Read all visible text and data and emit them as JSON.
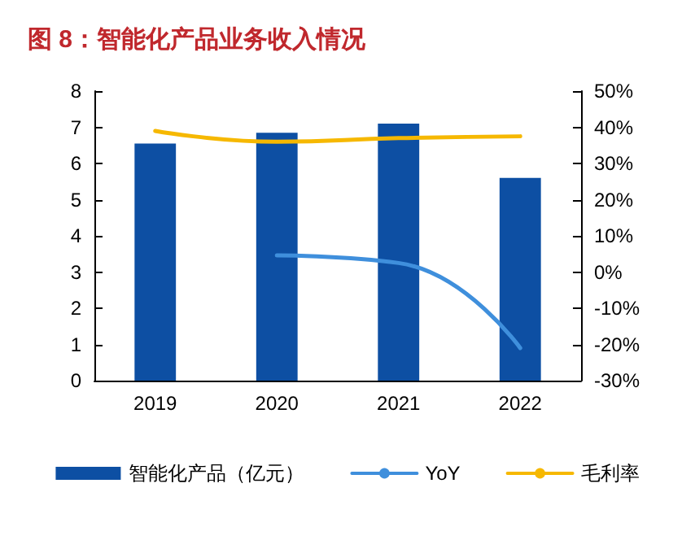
{
  "chart_data": {
    "type": "bar",
    "title": "图 8：智能化产品业务收入情况",
    "categories": [
      "2019",
      "2020",
      "2021",
      "2022"
    ],
    "series": [
      {
        "name": "智能化产品（亿元）",
        "color": "#0d4fa3",
        "values": [
          6.55,
          6.85,
          7.1,
          5.6
        ]
      },
      {
        "name": "YoY",
        "type": "line",
        "axis": "y2",
        "color": "#3f8fdc",
        "values": [
          null,
          4.6,
          2.5,
          -21
        ]
      },
      {
        "name": "毛利率",
        "type": "line",
        "axis": "y2",
        "color": "#f6b800",
        "values": [
          39,
          36,
          37,
          37.5
        ]
      }
    ],
    "ylim": [
      0,
      8
    ],
    "yticks": [
      0,
      1,
      2,
      3,
      4,
      5,
      6,
      7,
      8
    ],
    "y2lim": [
      -30,
      50
    ],
    "y2ticks": [
      {
        "value": -30,
        "label": "-30%"
      },
      {
        "value": -20,
        "label": "-20%"
      },
      {
        "value": -10,
        "label": "-10%"
      },
      {
        "value": 0,
        "label": "0%"
      },
      {
        "value": 10,
        "label": "10%"
      },
      {
        "value": 20,
        "label": "20%"
      },
      {
        "value": 30,
        "label": "30%"
      },
      {
        "value": 40,
        "label": "40%"
      },
      {
        "value": 50,
        "label": "50%"
      }
    ],
    "grid": false,
    "legend": "bottom",
    "marker": "none"
  }
}
